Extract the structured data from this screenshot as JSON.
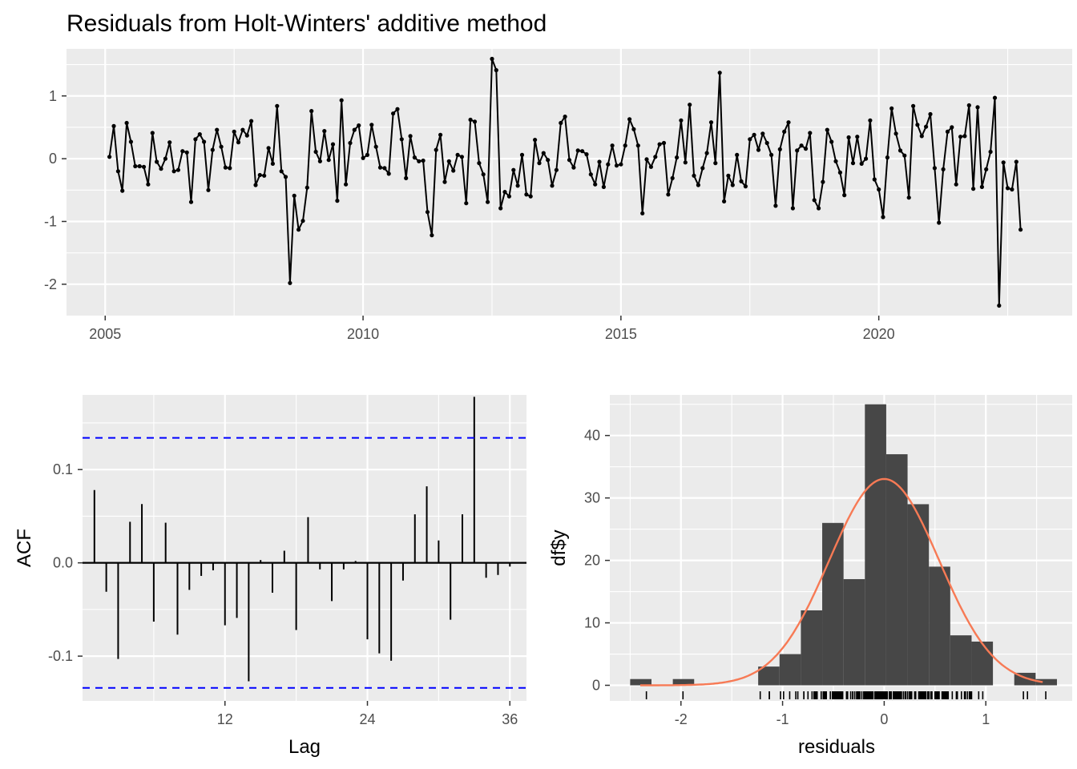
{
  "chart_data": [
    {
      "type": "line",
      "title": "Residuals from Holt-Winters' additive method",
      "xlabel": "",
      "ylabel": "",
      "x_ticks": [
        2005,
        2010,
        2015,
        2020
      ],
      "y_ticks": [
        -2,
        -1,
        0,
        1
      ],
      "xlim": [
        2004.25,
        2023.75
      ],
      "ylim": [
        -2.5,
        1.75
      ],
      "x_start": 2005.0833,
      "frequency": 12,
      "values": [
        0.03,
        0.52,
        -0.2,
        -0.51,
        0.57,
        0.27,
        -0.12,
        -0.12,
        -0.13,
        -0.41,
        0.41,
        -0.05,
        -0.16,
        0.0,
        0.26,
        -0.2,
        -0.18,
        0.12,
        0.1,
        -0.69,
        0.31,
        0.39,
        0.27,
        -0.5,
        0.14,
        0.46,
        0.19,
        -0.14,
        -0.15,
        0.43,
        0.26,
        0.46,
        0.37,
        0.6,
        -0.42,
        -0.26,
        -0.27,
        0.17,
        -0.08,
        0.84,
        -0.2,
        -0.29,
        -1.98,
        -0.59,
        -1.13,
        -0.99,
        -0.46,
        0.76,
        0.11,
        -0.04,
        0.44,
        -0.02,
        0.23,
        -0.67,
        0.93,
        -0.41,
        0.25,
        0.46,
        0.53,
        0.01,
        0.06,
        0.54,
        0.19,
        -0.14,
        -0.15,
        -0.24,
        0.72,
        0.79,
        0.31,
        -0.31,
        0.36,
        0.02,
        -0.04,
        -0.03,
        -0.85,
        -1.22,
        0.14,
        0.38,
        -0.37,
        -0.04,
        -0.19,
        0.06,
        0.03,
        -0.71,
        0.62,
        0.59,
        -0.07,
        -0.25,
        -0.69,
        1.59,
        1.41,
        -0.79,
        -0.53,
        -0.6,
        -0.18,
        -0.43,
        0.06,
        -0.57,
        -0.6,
        0.3,
        -0.07,
        0.09,
        -0.02,
        -0.43,
        -0.18,
        0.57,
        0.67,
        -0.02,
        -0.14,
        0.13,
        0.12,
        0.07,
        -0.25,
        -0.41,
        -0.05,
        -0.45,
        -0.09,
        0.21,
        -0.11,
        -0.09,
        0.21,
        0.63,
        0.47,
        0.21,
        -0.87,
        -0.01,
        -0.13,
        0.03,
        0.23,
        0.25,
        -0.57,
        -0.31,
        0.02,
        0.61,
        -0.06,
        0.86,
        -0.27,
        -0.42,
        -0.15,
        0.09,
        0.58,
        -0.07,
        1.37,
        -0.68,
        -0.27,
        -0.42,
        0.06,
        -0.36,
        -0.44,
        0.31,
        0.38,
        0.14,
        0.4,
        0.25,
        0.06,
        -0.75,
        0.15,
        0.43,
        0.58,
        -0.79,
        0.13,
        0.21,
        0.16,
        0.41,
        -0.66,
        -0.79,
        -0.37,
        0.46,
        0.27,
        -0.04,
        -0.22,
        -0.58,
        0.34,
        -0.07,
        0.35,
        -0.08,
        0.0,
        0.61,
        -0.33,
        -0.49,
        -0.93,
        0.02,
        0.8,
        0.4,
        0.13,
        0.05,
        -0.62,
        0.84,
        0.54,
        0.36,
        0.51,
        0.71,
        -0.15,
        -1.02,
        -0.17,
        0.43,
        0.5,
        -0.41,
        0.35,
        0.36,
        0.85,
        -0.48,
        0.82,
        -0.45,
        -0.17,
        0.11,
        0.97,
        -2.34,
        -0.06,
        -0.47,
        -0.49,
        -0.05,
        -1.13
      ]
    },
    {
      "type": "bar",
      "xlabel": "Lag",
      "ylabel": "ACF",
      "x_ticks": [
        12,
        24,
        36
      ],
      "y_ticks": [
        -0.1,
        0.0,
        0.1
      ],
      "xlim": [
        0,
        37.4
      ],
      "ylim": [
        -0.148,
        0.18
      ],
      "lags": [
        1,
        2,
        3,
        4,
        5,
        6,
        7,
        8,
        9,
        10,
        11,
        12,
        13,
        14,
        15,
        16,
        17,
        18,
        19,
        20,
        21,
        22,
        23,
        24,
        25,
        26,
        27,
        28,
        29,
        30,
        31,
        32,
        33,
        34,
        35,
        36
      ],
      "values": [
        0.078,
        -0.031,
        -0.103,
        0.044,
        0.063,
        -0.063,
        0.043,
        -0.077,
        -0.029,
        -0.014,
        -0.008,
        -0.067,
        -0.059,
        -0.127,
        0.003,
        -0.032,
        0.013,
        -0.072,
        0.049,
        -0.007,
        -0.041,
        -0.007,
        0.002,
        -0.082,
        -0.097,
        -0.105,
        -0.019,
        0.052,
        0.082,
        0.024,
        -0.061,
        0.052,
        0.178,
        -0.016,
        -0.013,
        -0.004
      ],
      "confidence_bounds": [
        0.134,
        -0.134
      ],
      "bound_color": "#0000ff"
    },
    {
      "type": "histogram",
      "xlabel": "residuals",
      "ylabel": "df$y",
      "x_ticks": [
        -2,
        -1,
        0,
        1
      ],
      "y_ticks": [
        0,
        10,
        20,
        30,
        40
      ],
      "xlim": [
        -2.7,
        1.85
      ],
      "ylim": [
        -2.5,
        46.5
      ],
      "bin_edges": [
        -2.5,
        -2.29,
        -2.08,
        -1.87,
        -1.66,
        -1.45,
        -1.24,
        -1.03,
        -0.82,
        -0.61,
        -0.4,
        -0.19,
        0.02,
        0.23,
        0.44,
        0.65,
        0.86,
        1.07,
        1.28,
        1.49,
        1.7
      ],
      "counts": [
        1,
        0,
        1,
        0,
        0,
        0,
        3,
        5,
        12,
        26,
        17,
        45,
        37,
        29,
        19,
        8,
        7,
        0,
        2,
        1
      ],
      "bar_color": "#474747",
      "density_curve": {
        "mean": 0.0,
        "sd": 0.54,
        "color": "#f77a55"
      }
    }
  ]
}
